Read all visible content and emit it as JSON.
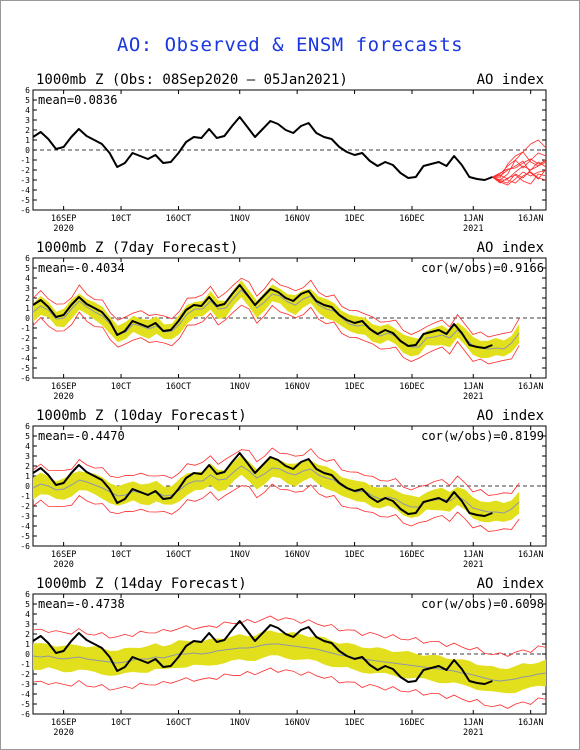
{
  "title": "AO: Observed & ENSM forecasts",
  "x_ticks": [
    {
      "day": 8,
      "label": "16SEP",
      "sub": "2020"
    },
    {
      "day": 23,
      "label": "10CT",
      "sub": ""
    },
    {
      "day": 38,
      "label": "16OCT",
      "sub": ""
    },
    {
      "day": 54,
      "label": "1NOV",
      "sub": ""
    },
    {
      "day": 69,
      "label": "16NOV",
      "sub": ""
    },
    {
      "day": 84,
      "label": "1DEC",
      "sub": ""
    },
    {
      "day": 99,
      "label": "16DEC",
      "sub": ""
    },
    {
      "day": 115,
      "label": "1JAN",
      "sub": "2021"
    },
    {
      "day": 130,
      "label": "16JAN",
      "sub": ""
    }
  ],
  "y_ticks": [
    "6",
    "5",
    "4",
    "3",
    "2",
    "1",
    "0",
    "-1",
    "-2",
    "-3",
    "-4",
    "-5",
    "-6"
  ],
  "colors": {
    "title": "#1a37e0",
    "observed": "#000000",
    "spread": "#e2e01c",
    "members": "#ff2a2a",
    "mean": "#8f96a8"
  },
  "chart_data": [
    {
      "type": "line",
      "panel_title": "1000mb Z (Obs: 08Sep2020 – 05Jan2021)",
      "index_label": "AO index",
      "mean_text": "mean=0.0836",
      "cor_text": "",
      "ylim": [
        -6,
        6
      ],
      "xlim_days": [
        0,
        134
      ],
      "observed": {
        "x": [
          0,
          2,
          4,
          6,
          8,
          10,
          12,
          14,
          16,
          18,
          20,
          22,
          24,
          26,
          28,
          30,
          32,
          34,
          36,
          38,
          40,
          42,
          44,
          46,
          48,
          50,
          52,
          54,
          56,
          58,
          60,
          62,
          64,
          66,
          68,
          70,
          72,
          74,
          76,
          78,
          80,
          82,
          84,
          86,
          88,
          90,
          92,
          94,
          96,
          98,
          100,
          102,
          104,
          106,
          108,
          110,
          112,
          114,
          116,
          118,
          120
        ],
        "y": [
          1.3,
          1.8,
          1.1,
          0.1,
          0.3,
          1.3,
          2.1,
          1.4,
          1.0,
          0.6,
          -0.3,
          -1.7,
          -1.3,
          -0.3,
          -0.6,
          -0.9,
          -0.5,
          -1.3,
          -1.2,
          -0.3,
          0.8,
          1.3,
          1.2,
          2.1,
          1.2,
          1.4,
          2.4,
          3.3,
          2.3,
          1.3,
          2.1,
          2.9,
          2.6,
          2.0,
          1.7,
          2.4,
          2.7,
          1.7,
          1.3,
          1.1,
          0.3,
          -0.2,
          -0.5,
          -0.3,
          -1.1,
          -1.6,
          -1.2,
          -1.5,
          -2.3,
          -2.8,
          -2.7,
          -1.6,
          -1.4,
          -1.2,
          -1.6,
          -0.6,
          -1.5,
          -2.7,
          -2.9,
          -3.0,
          -2.7
        ]
      },
      "has_band": false,
      "members": {
        "x_start": 120,
        "x_step": 2,
        "paths": [
          [
            -2.7,
            -3.0,
            -2.4,
            -1.0,
            -0.2,
            0.6,
            1.0,
            0.2
          ],
          [
            -2.7,
            -2.4,
            -1.6,
            -1.0,
            -1.8,
            -1.0,
            -0.3,
            -0.6
          ],
          [
            -2.7,
            -3.1,
            -3.3,
            -2.4,
            -2.8,
            -2.0,
            -1.6,
            -1.2
          ],
          [
            -2.7,
            -2.6,
            -2.0,
            -1.6,
            -1.1,
            -2.3,
            -2.9,
            -1.9
          ],
          [
            -2.7,
            -3.3,
            -2.8,
            -2.5,
            -3.1,
            -3.4,
            -2.4,
            -2.6
          ],
          [
            -2.7,
            -2.8,
            -1.4,
            -0.6,
            -0.2,
            -1.2,
            -1.6,
            -0.9
          ],
          [
            -2.7,
            -2.5,
            -2.9,
            -2.2,
            -1.6,
            -2.0,
            -1.2,
            -1.7
          ],
          [
            -2.7,
            -3.0,
            -3.0,
            -3.3,
            -2.6,
            -2.2,
            -2.8,
            -3.0
          ],
          [
            -2.7,
            -2.3,
            -1.9,
            -1.8,
            -1.3,
            -0.9,
            -1.4,
            -1.1
          ],
          [
            -2.7,
            -3.2,
            -3.5,
            -2.9,
            -2.2,
            -2.6,
            -2.2,
            -2.1
          ]
        ]
      }
    },
    {
      "type": "line",
      "panel_title": "1000mb Z (7day Forecast)",
      "index_label": "AO index",
      "mean_text": "mean=-0.4034",
      "cor_text": "cor(w/obs)=0.9166",
      "ylim": [
        -6,
        6
      ],
      "xlim_days": [
        0,
        134
      ],
      "observed": {
        "x": [
          0,
          2,
          4,
          6,
          8,
          10,
          12,
          14,
          16,
          18,
          20,
          22,
          24,
          26,
          28,
          30,
          32,
          34,
          36,
          38,
          40,
          42,
          44,
          46,
          48,
          50,
          52,
          54,
          56,
          58,
          60,
          62,
          64,
          66,
          68,
          70,
          72,
          74,
          76,
          78,
          80,
          82,
          84,
          86,
          88,
          90,
          92,
          94,
          96,
          98,
          100,
          102,
          104,
          106,
          108,
          110,
          112,
          114,
          116,
          118,
          120
        ],
        "y": [
          1.3,
          1.8,
          1.1,
          0.1,
          0.3,
          1.3,
          2.1,
          1.4,
          1.0,
          0.6,
          -0.3,
          -1.7,
          -1.3,
          -0.3,
          -0.6,
          -0.9,
          -0.5,
          -1.3,
          -1.2,
          -0.3,
          0.8,
          1.3,
          1.2,
          2.1,
          1.2,
          1.4,
          2.4,
          3.3,
          2.3,
          1.3,
          2.1,
          2.9,
          2.6,
          2.0,
          1.7,
          2.4,
          2.7,
          1.7,
          1.3,
          1.1,
          0.3,
          -0.2,
          -0.5,
          -0.3,
          -1.1,
          -1.6,
          -1.2,
          -1.5,
          -2.3,
          -2.8,
          -2.7,
          -1.6,
          -1.4,
          -1.2,
          -1.6,
          -0.6,
          -1.5,
          -2.7,
          -2.9,
          -3.0,
          -2.7
        ]
      },
      "has_band": true,
      "band_start": 0,
      "band_end": 127,
      "forecast_mean": [
        0.6,
        1.2,
        0.8,
        -0.1,
        0.0,
        0.9,
        1.7,
        1.1,
        0.6,
        0.2,
        -0.6,
        -1.6,
        -1.4,
        -0.6,
        -0.8,
        -1.1,
        -0.8,
        -1.4,
        -1.3,
        -0.6,
        0.4,
        0.9,
        0.9,
        1.7,
        0.9,
        1.0,
        2.0,
        2.8,
        2.0,
        1.0,
        1.6,
        2.4,
        2.2,
        1.6,
        1.3,
        1.9,
        2.2,
        1.3,
        0.9,
        0.7,
        0.0,
        -0.6,
        -0.8,
        -0.7,
        -1.4,
        -1.8,
        -1.5,
        -1.8,
        -2.5,
        -2.9,
        -2.9,
        -2.0,
        -1.9,
        -1.7,
        -2.0,
        -1.2,
        -2.0,
        -2.8,
        -3.0,
        -3.1,
        -3.0,
        -3.1,
        -2.5,
        -1.5
      ],
      "band_half": 0.85,
      "envelope_half": 1.35,
      "extra_red": [
        [
          127,
          0.3
        ]
      ]
    },
    {
      "type": "line",
      "panel_title": "1000mb Z (10day Forecast)",
      "index_label": "AO index",
      "mean_text": "mean=-0.4470",
      "cor_text": "cor(w/obs)=0.8199",
      "ylim": [
        -6,
        6
      ],
      "xlim_days": [
        0,
        134
      ],
      "observed": {
        "x": [
          0,
          2,
          4,
          6,
          8,
          10,
          12,
          14,
          16,
          18,
          20,
          22,
          24,
          26,
          28,
          30,
          32,
          34,
          36,
          38,
          40,
          42,
          44,
          46,
          48,
          50,
          52,
          54,
          56,
          58,
          60,
          62,
          64,
          66,
          68,
          70,
          72,
          74,
          76,
          78,
          80,
          82,
          84,
          86,
          88,
          90,
          92,
          94,
          96,
          98,
          100,
          102,
          104,
          106,
          108,
          110,
          112,
          114,
          116,
          118,
          120
        ],
        "y": [
          1.3,
          1.8,
          1.1,
          0.1,
          0.3,
          1.3,
          2.1,
          1.4,
          1.0,
          0.6,
          -0.3,
          -1.7,
          -1.3,
          -0.3,
          -0.6,
          -0.9,
          -0.5,
          -1.3,
          -1.2,
          -0.3,
          0.8,
          1.3,
          1.2,
          2.1,
          1.2,
          1.4,
          2.4,
          3.3,
          2.3,
          1.3,
          2.1,
          2.9,
          2.6,
          2.0,
          1.7,
          2.4,
          2.7,
          1.7,
          1.3,
          1.1,
          0.3,
          -0.2,
          -0.5,
          -0.3,
          -1.1,
          -1.6,
          -1.2,
          -1.5,
          -2.3,
          -2.8,
          -2.7,
          -1.6,
          -1.4,
          -1.2,
          -1.6,
          -0.6,
          -1.5,
          -2.7,
          -2.9,
          -3.0,
          -2.7
        ]
      },
      "has_band": true,
      "band_start": 0,
      "band_end": 127,
      "forecast_mean": [
        -0.2,
        0.2,
        0.0,
        -0.4,
        -0.3,
        0.1,
        0.6,
        0.4,
        0.1,
        -0.2,
        -0.6,
        -1.0,
        -0.9,
        -0.5,
        -0.7,
        -0.8,
        -0.6,
        -1.0,
        -0.9,
        -0.4,
        0.2,
        0.5,
        0.5,
        1.1,
        0.6,
        0.7,
        1.4,
        2.0,
        1.5,
        0.8,
        1.2,
        1.8,
        1.7,
        1.3,
        1.1,
        1.5,
        1.7,
        1.1,
        0.8,
        0.6,
        0.0,
        -0.4,
        -0.6,
        -0.5,
        -1.0,
        -1.3,
        -1.1,
        -1.3,
        -1.8,
        -2.1,
        -2.1,
        -1.5,
        -1.4,
        -1.3,
        -1.5,
        -1.0,
        -1.5,
        -2.2,
        -2.4,
        -2.6,
        -2.6,
        -2.7,
        -2.3,
        -1.6
      ],
      "band_half": 1.0,
      "envelope_half": 1.8,
      "extra_red": []
    },
    {
      "type": "line",
      "panel_title": "1000mb Z (14day Forecast)",
      "index_label": "AO index",
      "mean_text": "mean=-0.4738",
      "cor_text": "cor(w/obs)=0.6098",
      "ylim": [
        -6,
        6
      ],
      "xlim_days": [
        0,
        134
      ],
      "observed": {
        "x": [
          0,
          2,
          4,
          6,
          8,
          10,
          12,
          14,
          16,
          18,
          20,
          22,
          24,
          26,
          28,
          30,
          32,
          34,
          36,
          38,
          40,
          42,
          44,
          46,
          48,
          50,
          52,
          54,
          56,
          58,
          60,
          62,
          64,
          66,
          68,
          70,
          72,
          74,
          76,
          78,
          80,
          82,
          84,
          86,
          88,
          90,
          92,
          94,
          96,
          98,
          100,
          102,
          104,
          106,
          108,
          110,
          112,
          114,
          116,
          118,
          120
        ],
        "y": [
          1.3,
          1.8,
          1.1,
          0.1,
          0.3,
          1.3,
          2.1,
          1.4,
          1.0,
          0.6,
          -0.3,
          -1.7,
          -1.3,
          -0.3,
          -0.6,
          -0.9,
          -0.5,
          -1.3,
          -1.2,
          -0.3,
          0.8,
          1.3,
          1.2,
          2.1,
          1.2,
          1.4,
          2.4,
          3.3,
          2.3,
          1.3,
          2.1,
          2.9,
          2.6,
          2.0,
          1.7,
          2.4,
          2.7,
          1.7,
          1.3,
          1.1,
          0.3,
          -0.2,
          -0.5,
          -0.3,
          -1.1,
          -1.6,
          -1.2,
          -1.5,
          -2.3,
          -2.8,
          -2.7,
          -1.6,
          -1.4,
          -1.2,
          -1.6,
          -0.6,
          -1.5,
          -2.7,
          -2.9,
          -3.0,
          -2.7
        ]
      },
      "has_band": true,
      "band_start": 0,
      "band_end": 134,
      "forecast_mean": [
        -0.2,
        -0.3,
        -0.2,
        -0.4,
        -0.5,
        -0.4,
        -0.3,
        -0.5,
        -0.6,
        -0.7,
        -0.8,
        -0.9,
        -0.8,
        -0.6,
        -0.5,
        -0.5,
        -0.3,
        -0.4,
        -0.2,
        0.0,
        0.0,
        0.1,
        0.0,
        0.1,
        0.3,
        0.4,
        0.5,
        0.6,
        0.6,
        0.7,
        0.9,
        1.0,
        1.0,
        0.9,
        0.8,
        0.7,
        0.6,
        0.5,
        0.3,
        0.1,
        -0.1,
        -0.2,
        -0.4,
        -0.5,
        -0.6,
        -0.7,
        -0.8,
        -0.9,
        -1.0,
        -1.1,
        -1.2,
        -1.3,
        -1.4,
        -1.5,
        -1.6,
        -1.7,
        -1.9,
        -2.0,
        -2.2,
        -2.4,
        -2.6,
        -2.7,
        -2.6,
        -2.5,
        -2.3,
        -2.2,
        -2.0,
        -1.9
      ],
      "band_half": 1.25,
      "envelope_half": 2.6,
      "extra_red": []
    }
  ]
}
